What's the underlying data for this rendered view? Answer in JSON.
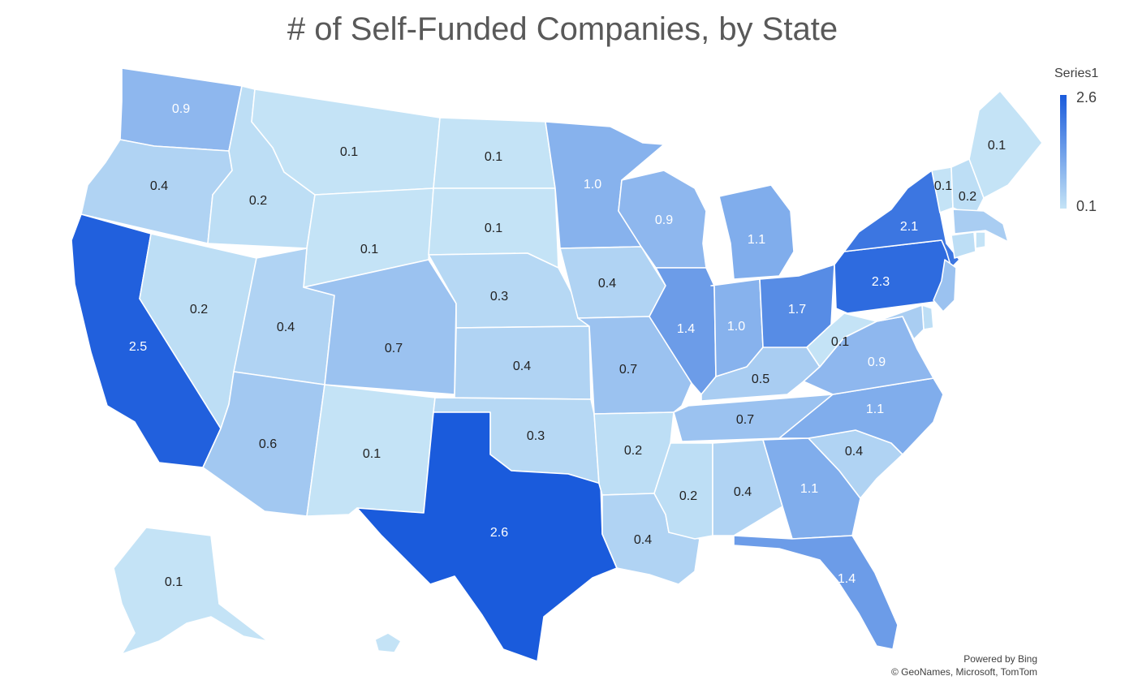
{
  "title": "# of Self-Funded Companies, by State",
  "legend": {
    "title": "Series1",
    "max_label": "2.6",
    "min_label": "0.1",
    "min_color": "#c4e3f6",
    "max_color": "#1a5bdc"
  },
  "credits": {
    "line1": "Powered by Bing",
    "line2": "© GeoNames, Microsoft, TomTom"
  },
  "chart_data": {
    "type": "choropleth",
    "series": "Series1",
    "scale": {
      "min": 0.1,
      "max": 2.6
    },
    "states": [
      {
        "state": "Washington",
        "label": "0.9",
        "value": 0.9
      },
      {
        "state": "Oregon",
        "label": "0.4",
        "value": 0.4
      },
      {
        "state": "California",
        "label": "2.5",
        "value": 2.5
      },
      {
        "state": "Idaho",
        "label": "0.2",
        "value": 0.2
      },
      {
        "state": "Nevada",
        "label": "0.2",
        "value": 0.2
      },
      {
        "state": "Montana",
        "label": "0.1",
        "value": 0.1
      },
      {
        "state": "Wyoming",
        "label": "0.1",
        "value": 0.1
      },
      {
        "state": "Utah",
        "label": "0.4",
        "value": 0.4
      },
      {
        "state": "Arizona",
        "label": "0.6",
        "value": 0.6
      },
      {
        "state": "Colorado",
        "label": "0.7",
        "value": 0.7
      },
      {
        "state": "New Mexico",
        "label": "0.1",
        "value": 0.1
      },
      {
        "state": "North Dakota",
        "label": "0.1",
        "value": 0.1
      },
      {
        "state": "South Dakota",
        "label": "0.1",
        "value": 0.1
      },
      {
        "state": "Nebraska",
        "label": "0.3",
        "value": 0.3
      },
      {
        "state": "Kansas",
        "label": "0.4",
        "value": 0.4
      },
      {
        "state": "Oklahoma",
        "label": "0.3",
        "value": 0.3
      },
      {
        "state": "Texas",
        "label": "2.6",
        "value": 2.6
      },
      {
        "state": "Minnesota",
        "label": "1.0",
        "value": 1.0
      },
      {
        "state": "Iowa",
        "label": "0.4",
        "value": 0.4
      },
      {
        "state": "Missouri",
        "label": "0.7",
        "value": 0.7
      },
      {
        "state": "Arkansas",
        "label": "0.2",
        "value": 0.2
      },
      {
        "state": "Louisiana",
        "label": "0.4",
        "value": 0.4
      },
      {
        "state": "Wisconsin",
        "label": "0.9",
        "value": 0.9
      },
      {
        "state": "Illinois",
        "label": "1.4",
        "value": 1.4
      },
      {
        "state": "Michigan",
        "label": "1.1",
        "value": 1.1
      },
      {
        "state": "Indiana",
        "label": "1.0",
        "value": 1.0
      },
      {
        "state": "Ohio",
        "label": "1.7",
        "value": 1.7
      },
      {
        "state": "Kentucky",
        "label": "0.5",
        "value": 0.5
      },
      {
        "state": "Tennessee",
        "label": "0.7",
        "value": 0.7
      },
      {
        "state": "Mississippi",
        "label": "0.2",
        "value": 0.2
      },
      {
        "state": "Alabama",
        "label": "0.4",
        "value": 0.4
      },
      {
        "state": "Georgia",
        "label": "1.1",
        "value": 1.1
      },
      {
        "state": "Florida",
        "label": "1.4",
        "value": 1.4
      },
      {
        "state": "South Carolina",
        "label": "0.4",
        "value": 0.4
      },
      {
        "state": "North Carolina",
        "label": "1.1",
        "value": 1.1
      },
      {
        "state": "Virginia",
        "label": "0.9",
        "value": 0.9
      },
      {
        "state": "West Virginia",
        "label": "0.1",
        "value": 0.1
      },
      {
        "state": "Pennsylvania",
        "label": "2.3",
        "value": 2.3
      },
      {
        "state": "New York",
        "label": "2.1",
        "value": 2.1
      },
      {
        "state": "Vermont",
        "label": "0.1",
        "value": 0.1
      },
      {
        "state": "New Hampshire",
        "label": "0.2",
        "value": 0.2
      },
      {
        "state": "Maine",
        "label": "0.1",
        "value": 0.1
      },
      {
        "state": "Alaska",
        "label": "0.1",
        "value": 0.1
      },
      {
        "state": "Hawaii",
        "value": 0.1
      },
      {
        "state": "Massachusetts",
        "value": 0.5
      },
      {
        "state": "Connecticut",
        "value": 0.2
      },
      {
        "state": "Rhode Island",
        "value": 0.1
      },
      {
        "state": "New Jersey",
        "value": 0.7
      },
      {
        "state": "Delaware",
        "value": 0.2
      },
      {
        "state": "Maryland",
        "value": 0.5
      }
    ]
  }
}
